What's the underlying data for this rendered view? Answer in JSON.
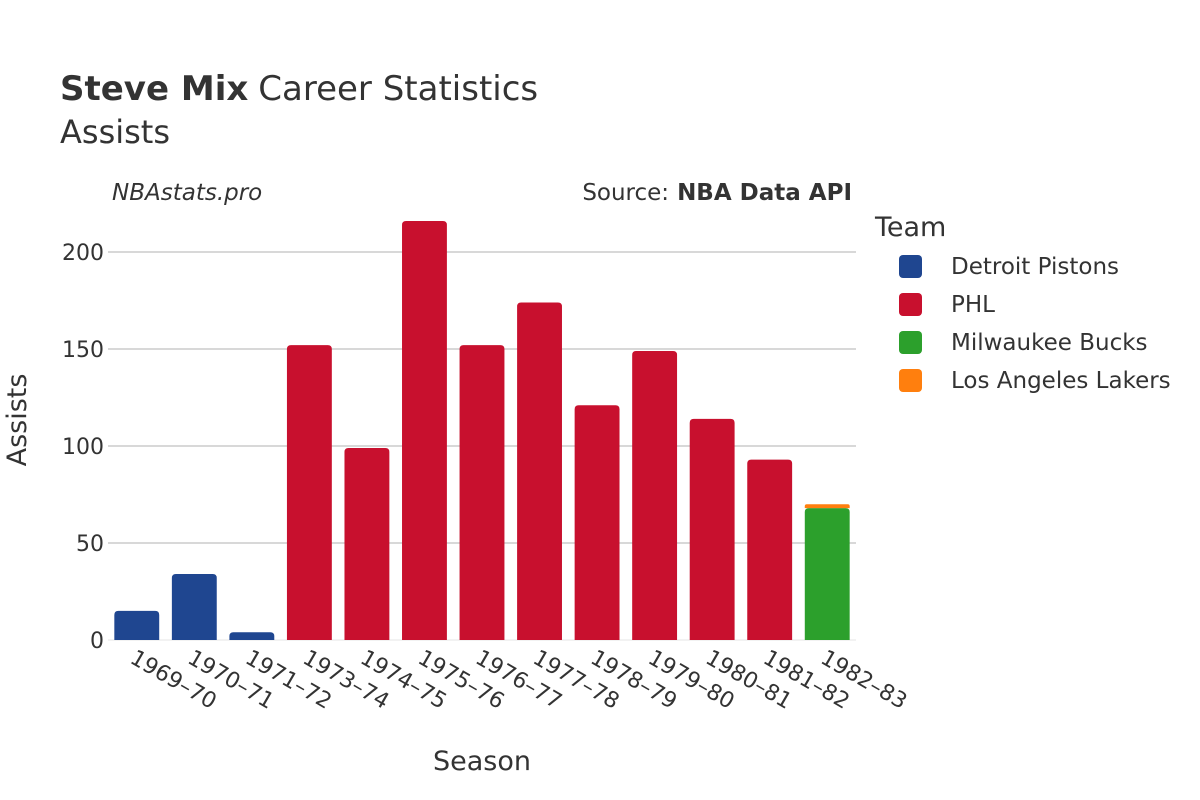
{
  "header": {
    "player_name": "Steve Mix",
    "title_suffix": "Career Statistics",
    "subtitle": "Assists"
  },
  "watermark": "NBAstats.pro",
  "source": {
    "label": "Source:",
    "value": "NBA Data API"
  },
  "legend": {
    "title": "Team"
  },
  "chart_data": {
    "type": "bar",
    "title": "Steve Mix Career Statistics",
    "subtitle": "Assists",
    "xlabel": "Season",
    "ylabel": "Assists",
    "ylim": [
      0,
      225
    ],
    "yticks": [
      0,
      50,
      100,
      150,
      200
    ],
    "grid": true,
    "legend_position": "right",
    "stacked": true,
    "categories": [
      "1969–70",
      "1970–71",
      "1971–72",
      "1973–74",
      "1974–75",
      "1975–76",
      "1976–77",
      "1977–78",
      "1978–79",
      "1979–80",
      "1980–81",
      "1981–82",
      "1982–83"
    ],
    "series": [
      {
        "name": "Detroit Pistons",
        "color": "#1f4690",
        "values": [
          15,
          34,
          4,
          0,
          0,
          0,
          0,
          0,
          0,
          0,
          0,
          0,
          0
        ]
      },
      {
        "name": "PHL",
        "color": "#c8102e",
        "values": [
          0,
          0,
          0,
          152,
          99,
          216,
          152,
          174,
          121,
          149,
          114,
          93,
          0
        ]
      },
      {
        "name": "Milwaukee Bucks",
        "color": "#2ca02c",
        "values": [
          0,
          0,
          0,
          0,
          0,
          0,
          0,
          0,
          0,
          0,
          0,
          0,
          68
        ]
      },
      {
        "name": "Los Angeles Lakers",
        "color": "#ff7f0e",
        "values": [
          0,
          0,
          0,
          0,
          0,
          0,
          0,
          0,
          0,
          0,
          0,
          0,
          2
        ]
      }
    ]
  }
}
